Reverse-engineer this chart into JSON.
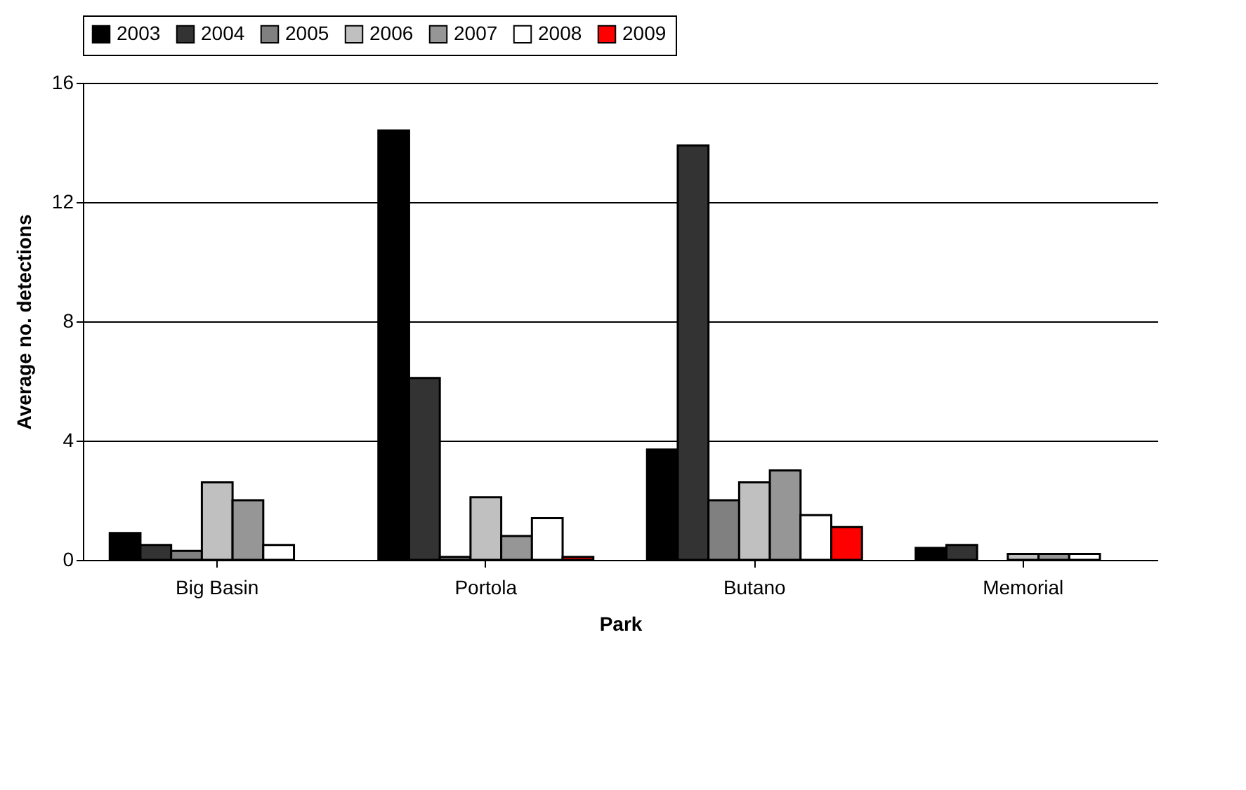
{
  "chart_data": {
    "type": "bar",
    "xlabel": "Park",
    "ylabel": "Average no. detections",
    "categories": [
      "Big Basin",
      "Portola",
      "Butano",
      "Memorial"
    ],
    "series": [
      {
        "name": "2003",
        "color": "#000000",
        "values": [
          0.9,
          14.4,
          3.7,
          0.4
        ]
      },
      {
        "name": "2004",
        "color": "#333333",
        "values": [
          0.5,
          6.1,
          13.9,
          0.5
        ]
      },
      {
        "name": "2005",
        "color": "#808080",
        "values": [
          0.3,
          0.1,
          2.0,
          null
        ]
      },
      {
        "name": "2006",
        "color": "#c0c0c0",
        "values": [
          2.6,
          2.1,
          2.6,
          0.2
        ]
      },
      {
        "name": "2007",
        "color": "#969696",
        "values": [
          2.0,
          0.8,
          3.0,
          0.2
        ]
      },
      {
        "name": "2008",
        "color": "#ffffff",
        "values": [
          0.5,
          1.4,
          1.5,
          0.2
        ]
      },
      {
        "name": "2009",
        "color": "#ff0000",
        "values": [
          null,
          0.1,
          1.1,
          null
        ]
      }
    ],
    "ylim": [
      0,
      16
    ],
    "yticks": [
      0,
      4,
      8,
      12,
      16
    ],
    "grid": "y",
    "legend": "top"
  }
}
